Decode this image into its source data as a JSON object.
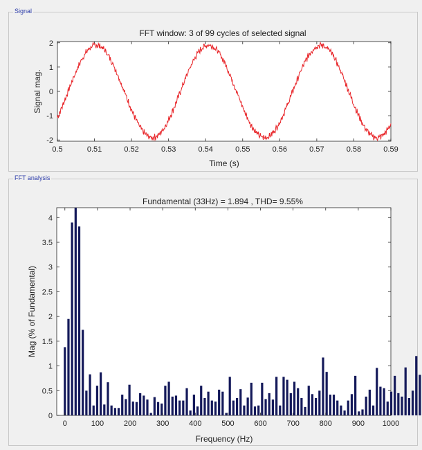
{
  "panels": {
    "signal": {
      "title": "Signal"
    },
    "fft": {
      "title": "FFT analysis"
    }
  },
  "colors": {
    "signal_line": "#e8262a",
    "bars": "#14195a",
    "axis": "#262626",
    "panel_title": "#2a3aa8"
  },
  "chart_data": [
    {
      "type": "line",
      "title": "FFT window: 3 of 99 cycles of selected signal",
      "xlabel": "Time (s)",
      "ylabel": "Signal mag.",
      "xlim": [
        0.5,
        0.59
      ],
      "ylim": [
        -2.05,
        2.05
      ],
      "xticks": [
        "0.5",
        "0.51",
        "0.52",
        "0.53",
        "0.54",
        "0.55",
        "0.56",
        "0.57",
        "0.58",
        "0.59"
      ],
      "yticks": [
        "2",
        "1",
        "0",
        "-1",
        "-2"
      ],
      "series": [
        {
          "amplitude": 1.9,
          "frequency_hz": 33,
          "phase_rad": -0.6,
          "noise_amplitude": 0.1,
          "x": [
            0.5,
            0.59
          ]
        }
      ]
    },
    {
      "type": "bar",
      "title": "Fundamental (33Hz) = 1.894 , THD= 9.55%",
      "xlabel": "Frequency (Hz)",
      "ylabel": "Mag (% of Fundamental)",
      "xlim": [
        -25,
        1000
      ],
      "ylim": [
        0,
        4.2
      ],
      "xticks": [
        "0",
        "100",
        "200",
        "300",
        "400",
        "500",
        "600",
        "700",
        "800",
        "900",
        "1000"
      ],
      "yticks": [
        "0",
        "0.5",
        "1",
        "1.5",
        "2",
        "2.5",
        "3",
        "3.5",
        "4"
      ],
      "bin_width_hz": 11,
      "x_start_hz": 0,
      "values": [
        1.38,
        1.95,
        3.9,
        4.2,
        3.82,
        1.73,
        0.5,
        0.83,
        0.2,
        0.6,
        0.87,
        0.22,
        0.67,
        0.2,
        0.15,
        0.15,
        0.42,
        0.33,
        0.62,
        0.28,
        0.27,
        0.45,
        0.4,
        0.32,
        0.05,
        0.37,
        0.27,
        0.24,
        0.6,
        0.68,
        0.38,
        0.4,
        0.3,
        0.3,
        0.55,
        0.1,
        0.42,
        0.18,
        0.6,
        0.35,
        0.48,
        0.3,
        0.28,
        0.52,
        0.48,
        0.05,
        0.78,
        0.3,
        0.35,
        0.53,
        0.2,
        0.36,
        0.66,
        0.18,
        0.2,
        0.66,
        0.33,
        0.45,
        0.32,
        0.78,
        0.2,
        0.78,
        0.72,
        0.45,
        0.68,
        0.55,
        0.35,
        0.17,
        0.6,
        0.43,
        0.35,
        0.5,
        1.17,
        0.88,
        0.42,
        0.42,
        0.3,
        0.2,
        0.1,
        0.3,
        0.43,
        0.8,
        0.08,
        0.12,
        0.38,
        0.52,
        0.2,
        0.96,
        0.58,
        0.55,
        0.28,
        0.48,
        0.8,
        0.45,
        0.38,
        0.97,
        0.35,
        0.5,
        1.2,
        0.82,
        0.67
      ]
    }
  ]
}
